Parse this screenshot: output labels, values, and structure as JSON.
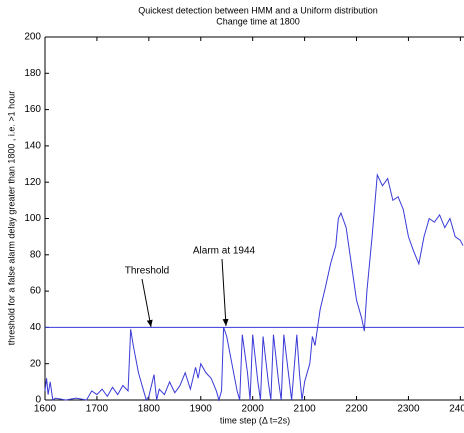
{
  "chart_data": {
    "type": "line",
    "title": "Quickest detection between HMM and a Uniform distribution",
    "subtitle": "Change time at 1800",
    "x_label": "time step (Δ t=2s)",
    "y_label": "threshold for a false alarm delay greater than 1800 , i.e. >1 hour",
    "annotations": [
      "Threshold",
      "Alarm at 1944"
    ],
    "threshold": 40,
    "xlim": [
      1600,
      2407
    ],
    "ylim": [
      0,
      200
    ],
    "xticks": [
      1600,
      1700,
      1800,
      1900,
      2000,
      2100,
      2200,
      2300,
      2400
    ],
    "yticks": [
      0,
      20,
      40,
      60,
      80,
      100,
      120,
      140,
      160,
      180,
      200
    ],
    "color": "#3a3ad8",
    "x": [
      1600,
      1603,
      1606,
      1610,
      1615,
      1620,
      1640,
      1660,
      1680,
      1690,
      1700,
      1710,
      1720,
      1730,
      1740,
      1750,
      1760,
      1765,
      1770,
      1780,
      1790,
      1795,
      1800,
      1805,
      1810,
      1815,
      1820,
      1830,
      1840,
      1850,
      1860,
      1870,
      1880,
      1890,
      1895,
      1900,
      1910,
      1920,
      1930,
      1935,
      1940,
      1944,
      1950,
      1960,
      1970,
      1975,
      1980,
      1990,
      1995,
      2000,
      2010,
      2015,
      2020,
      2030,
      2035,
      2040,
      2050,
      2055,
      2060,
      2070,
      2075,
      2085,
      2090,
      2095,
      2100,
      2110,
      2115,
      2120,
      2130,
      2140,
      2150,
      2160,
      2165,
      2170,
      2180,
      2190,
      2200,
      2210,
      2215,
      2220,
      2230,
      2240,
      2250,
      2260,
      2270,
      2280,
      2290,
      2300,
      2310,
      2320,
      2330,
      2340,
      2350,
      2360,
      2370,
      2380,
      2390,
      2400,
      2405
    ],
    "values": [
      5,
      12,
      3,
      10,
      0,
      1,
      0,
      1,
      0,
      5,
      3,
      6,
      2,
      7,
      3,
      8,
      5,
      39,
      30,
      15,
      5,
      0,
      2,
      8,
      14,
      0,
      6,
      3,
      10,
      4,
      8,
      15,
      6,
      18,
      12,
      20,
      15,
      12,
      5,
      0,
      5,
      40,
      35,
      20,
      5,
      0,
      36,
      15,
      0,
      36,
      10,
      0,
      35,
      10,
      0,
      36,
      10,
      0,
      36,
      12,
      0,
      36,
      15,
      0,
      10,
      20,
      35,
      30,
      50,
      62,
      75,
      85,
      100,
      103,
      95,
      75,
      55,
      45,
      38,
      60,
      90,
      124,
      118,
      122,
      110,
      112,
      105,
      90,
      82,
      75,
      90,
      100,
      98,
      102,
      95,
      100,
      90,
      88,
      85
    ]
  }
}
